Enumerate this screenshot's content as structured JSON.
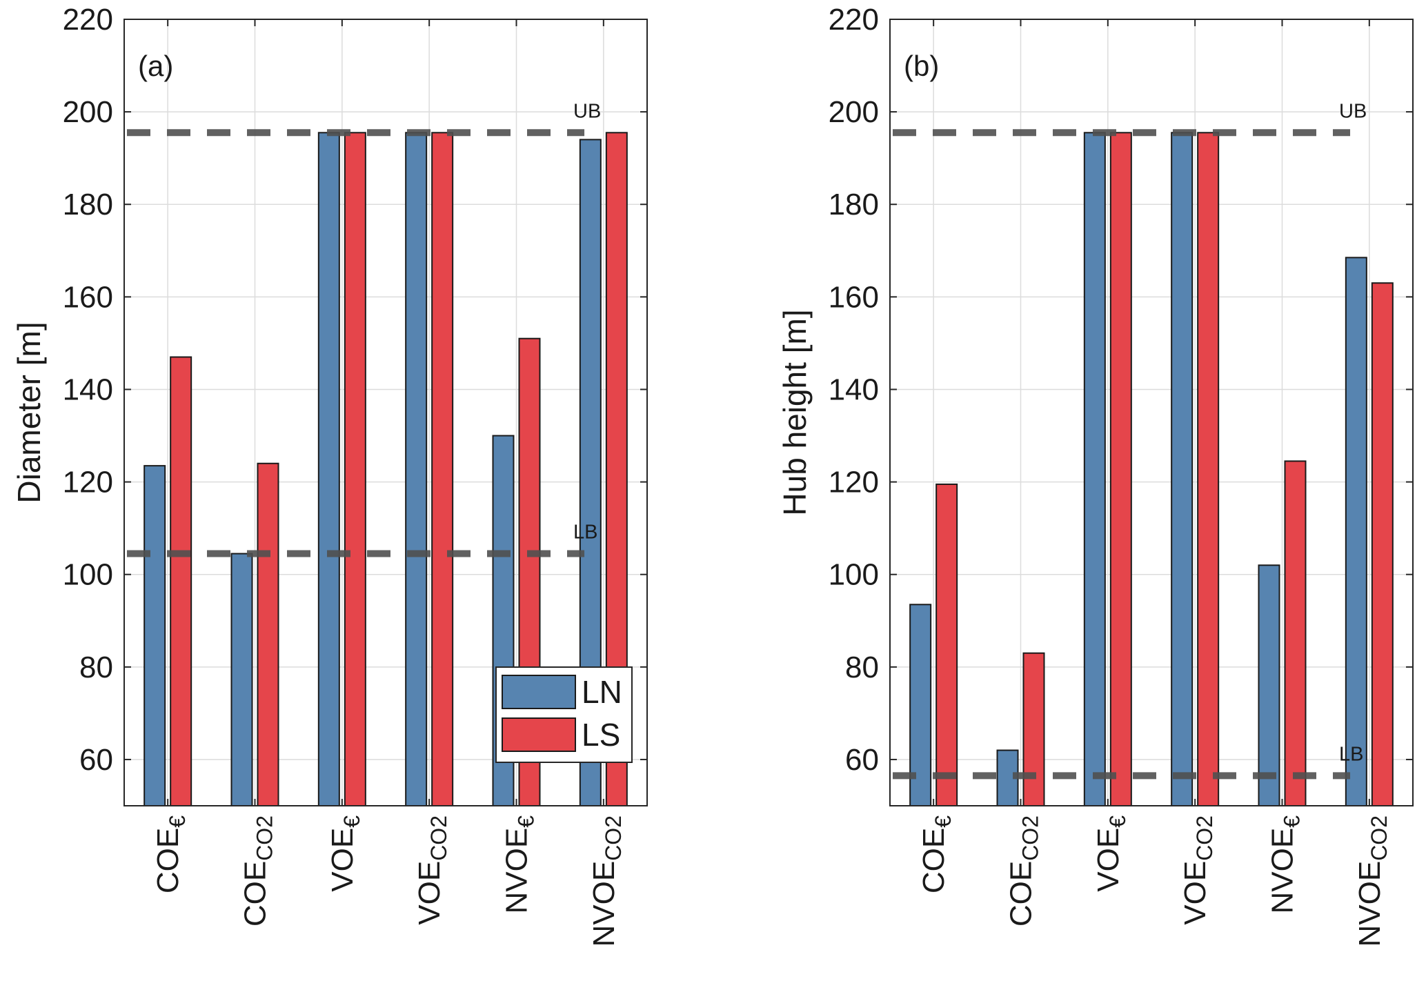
{
  "chart_data": [
    {
      "type": "bar",
      "panel": "(a)",
      "ylabel": "Diameter [m]",
      "xlabel": "",
      "ylim": [
        50,
        220
      ],
      "yticks": [
        60,
        80,
        100,
        120,
        140,
        160,
        180,
        200,
        220
      ],
      "grid": true,
      "categories": [
        {
          "base": "COE",
          "sub": "€"
        },
        {
          "base": "COE",
          "sub": "CO2"
        },
        {
          "base": "VOE",
          "sub": "€"
        },
        {
          "base": "VOE",
          "sub": "CO2"
        },
        {
          "base": "NVOE",
          "sub": "€"
        },
        {
          "base": "NVOE",
          "sub": "CO2"
        }
      ],
      "series": [
        {
          "name": "LN",
          "color": "#5784b0",
          "values": [
            123.5,
            104.5,
            195.5,
            195.5,
            130,
            194
          ]
        },
        {
          "name": "LS",
          "color": "#e5454b",
          "values": [
            147,
            124,
            195.5,
            195.5,
            151,
            195.5
          ]
        }
      ],
      "bounds": [
        {
          "label": "UB",
          "value": 195.5
        },
        {
          "label": "LB",
          "value": 104.5
        }
      ],
      "legend": {
        "show": true,
        "placement": "bottom-right",
        "entries": [
          "LN",
          "LS"
        ]
      }
    },
    {
      "type": "bar",
      "panel": "(b)",
      "ylabel": "Hub height [m]",
      "xlabel": "",
      "ylim": [
        50,
        220
      ],
      "yticks": [
        60,
        80,
        100,
        120,
        140,
        160,
        180,
        200,
        220
      ],
      "grid": true,
      "categories": [
        {
          "base": "COE",
          "sub": "€"
        },
        {
          "base": "COE",
          "sub": "CO2"
        },
        {
          "base": "VOE",
          "sub": "€"
        },
        {
          "base": "VOE",
          "sub": "CO2"
        },
        {
          "base": "NVOE",
          "sub": "€"
        },
        {
          "base": "NVOE",
          "sub": "CO2"
        }
      ],
      "series": [
        {
          "name": "LN",
          "color": "#5784b0",
          "values": [
            93.5,
            62,
            195.5,
            195.5,
            102,
            168.5
          ]
        },
        {
          "name": "LS",
          "color": "#e5454b",
          "values": [
            119.5,
            83,
            195.5,
            195.5,
            124.5,
            163
          ]
        }
      ],
      "bounds": [
        {
          "label": "UB",
          "value": 195.5
        },
        {
          "label": "LB",
          "value": 56.5
        }
      ],
      "legend": {
        "show": false
      }
    }
  ]
}
